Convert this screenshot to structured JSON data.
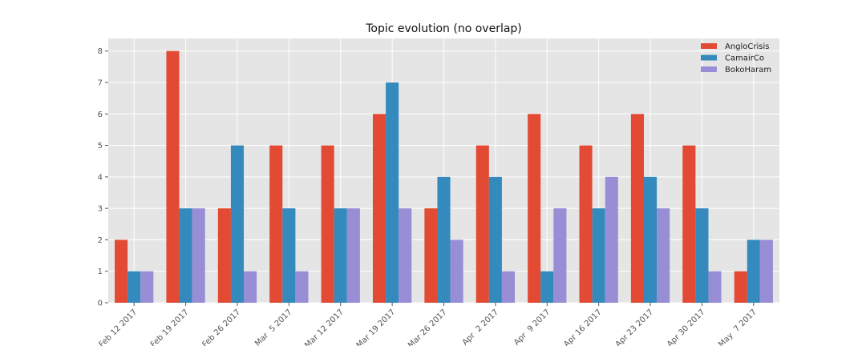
{
  "chart_data": {
    "type": "bar",
    "title": "Topic evolution (no overlap)",
    "xlabel": "",
    "ylabel": "",
    "categories": [
      "Feb 12 2017",
      "Feb 19 2017",
      "Feb 26 2017",
      "Mar  5 2017",
      "Mar 12 2017",
      "Mar 19 2017",
      "Mar 26 2017",
      "Apr  2 2017",
      "Apr  9 2017",
      "Apr 16 2017",
      "Apr 23 2017",
      "Apr 30 2017",
      "May  7 2017"
    ],
    "series": [
      {
        "name": "AngloCrisis",
        "color": "#E24A33",
        "values": [
          2,
          8,
          3,
          5,
          5,
          6,
          3,
          5,
          6,
          5,
          6,
          5,
          1
        ]
      },
      {
        "name": "CamairCo",
        "color": "#348ABD",
        "values": [
          1,
          3,
          5,
          3,
          3,
          7,
          4,
          4,
          1,
          3,
          4,
          3,
          2
        ]
      },
      {
        "name": "BokoHaram",
        "color": "#988ED5",
        "values": [
          1,
          3,
          1,
          1,
          3,
          3,
          2,
          1,
          3,
          4,
          3,
          1,
          2
        ]
      }
    ],
    "ylim": [
      0,
      8.4
    ],
    "yticks": [
      "0",
      "1",
      "2",
      "3",
      "4",
      "5",
      "6",
      "7",
      "8"
    ],
    "grid": true,
    "legend_position": "top-right",
    "background_color": "#E5E5E5"
  }
}
